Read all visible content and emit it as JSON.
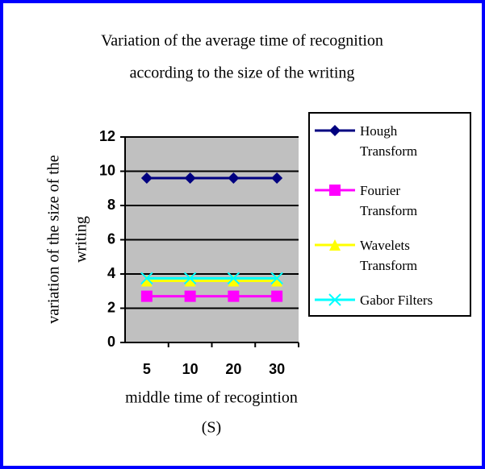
{
  "chart_data": {
    "type": "line",
    "title": [
      "Variation of the average time of recognition",
      "according to the size of the writing"
    ],
    "xlabel": [
      "middle time of recogintion",
      "(S)"
    ],
    "ylabel": [
      "variation of the size of the",
      "writing"
    ],
    "categories": [
      "5",
      "10",
      "20",
      "30"
    ],
    "series": [
      {
        "name": "Hough Transform",
        "color": "#000080",
        "marker": "diamond",
        "values": [
          9.6,
          9.6,
          9.6,
          9.6
        ]
      },
      {
        "name": "Fourier Transform",
        "color": "#ff00ff",
        "marker": "square",
        "values": [
          2.7,
          2.7,
          2.7,
          2.7
        ]
      },
      {
        "name": "Wavelets Transform",
        "color": "#ffff00",
        "marker": "triangle",
        "values": [
          3.6,
          3.6,
          3.6,
          3.6
        ]
      },
      {
        "name": "Gabor Filters",
        "color": "#00ffff",
        "marker": "x",
        "values": [
          3.75,
          3.75,
          3.75,
          3.75
        ]
      }
    ],
    "ylim": [
      0,
      12
    ],
    "yticks": [
      0,
      2,
      4,
      6,
      8,
      10,
      12
    ],
    "grid": true,
    "plot_background": "#c0c0c0"
  }
}
